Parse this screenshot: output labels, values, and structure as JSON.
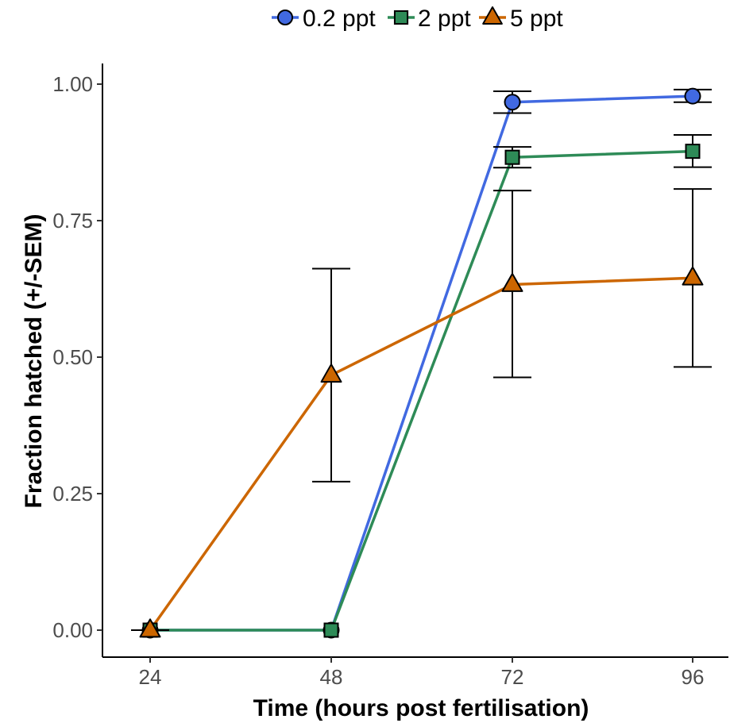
{
  "chart_data": {
    "type": "line",
    "x": [
      24,
      48,
      72,
      96
    ],
    "xlabel": "Time (hours post fertilisation)",
    "ylabel": "Fraction hatched (+/-SEM)",
    "xticks": [
      "24",
      "48",
      "72",
      "96"
    ],
    "yticks": [
      "0.00",
      "0.25",
      "0.50",
      "0.75",
      "1.00"
    ],
    "ylim": [
      -0.05,
      1.04
    ],
    "legend_position": "top",
    "grid": false,
    "series": [
      {
        "name": "0.2 ppt",
        "color": "#4169E1",
        "marker": "circle",
        "values": [
          0,
          0,
          0.967,
          0.978
        ],
        "err_low": [
          null,
          null,
          0.947,
          0.967
        ],
        "err_high": [
          null,
          null,
          0.987,
          0.99
        ]
      },
      {
        "name": "2 ppt",
        "color": "#2E8B57",
        "marker": "square",
        "values": [
          0,
          0,
          0.866,
          0.877
        ],
        "err_low": [
          null,
          null,
          0.847,
          0.848
        ],
        "err_high": [
          null,
          null,
          0.885,
          0.907
        ]
      },
      {
        "name": "5 ppt",
        "color": "#CC6600",
        "marker": "triangle",
        "values": [
          0,
          0.467,
          0.633,
          0.645
        ],
        "err_low": [
          0,
          0.272,
          0.463,
          0.482
        ],
        "err_high": [
          0,
          0.662,
          0.805,
          0.808
        ]
      }
    ]
  }
}
